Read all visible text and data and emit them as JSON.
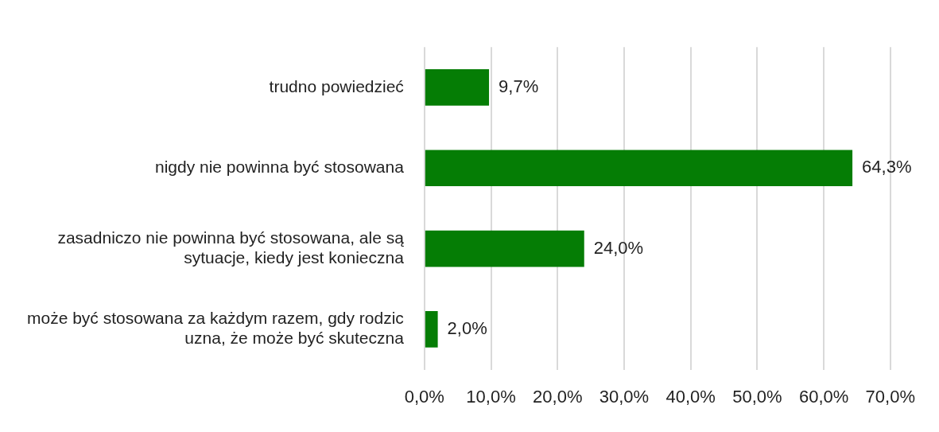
{
  "chart_data": {
    "type": "bar",
    "orientation": "horizontal",
    "categories": [
      "trudno powiedzieć",
      "nigdy nie powinna być stosowana",
      "zasadniczo nie powinna być stosowana, ale są sytuacje, kiedy jest konieczna",
      "może być stosowana za każdym razem, gdy rodzic uzna, że może być skuteczna"
    ],
    "values": [
      9.7,
      64.3,
      24.0,
      2.0
    ],
    "value_labels": [
      "9,7%",
      "64,3%",
      "24,0%",
      "2,0%"
    ],
    "color": "#057d05",
    "xlim": [
      0,
      70
    ],
    "xticks": [
      {
        "value": 0,
        "label": "0,0%"
      },
      {
        "value": 10,
        "label": "10,0%"
      },
      {
        "value": 20,
        "label": "20,0%"
      },
      {
        "value": 30,
        "label": "30,0%"
      },
      {
        "value": 40,
        "label": "40,0%"
      },
      {
        "value": 50,
        "label": "50,0%"
      },
      {
        "value": 60,
        "label": "60,0%"
      },
      {
        "value": 70,
        "label": "70,0%"
      }
    ],
    "grid": "x",
    "legend": false
  }
}
